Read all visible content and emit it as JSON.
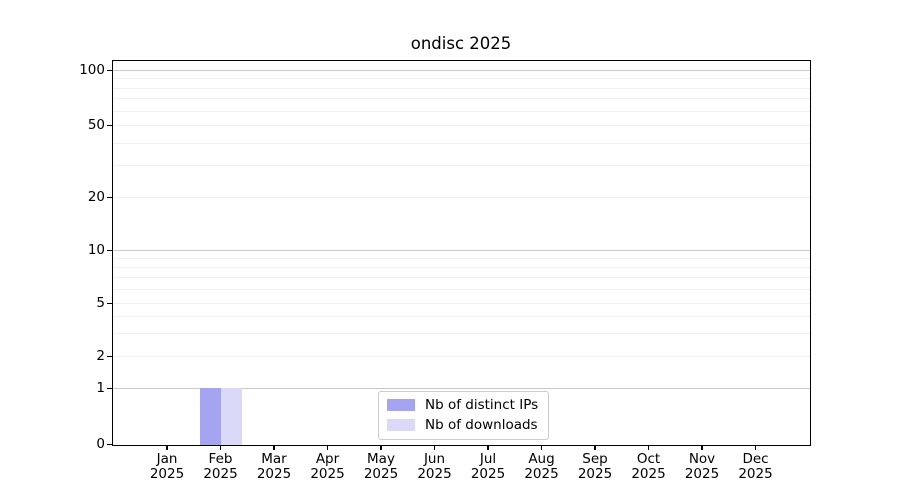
{
  "chart_data": {
    "type": "bar",
    "title": "ondisc 2025",
    "x": {
      "categories": [
        "Jan",
        "Feb",
        "Mar",
        "Apr",
        "May",
        "Jun",
        "Jul",
        "Aug",
        "Sep",
        "Oct",
        "Nov",
        "Dec"
      ],
      "year": "2025"
    },
    "series": [
      {
        "name": "Nb of distinct IPs",
        "color": "#a4a4f0",
        "values": [
          0,
          1,
          0,
          0,
          0,
          0,
          0,
          0,
          0,
          0,
          0,
          0
        ]
      },
      {
        "name": "Nb of downloads",
        "color": "#dadaf8",
        "values": [
          0,
          1,
          0,
          0,
          0,
          0,
          0,
          0,
          0,
          0,
          0,
          0
        ]
      }
    ],
    "y_axis": {
      "scale": "log-like (linear 0-1, log above)",
      "tick_values": [
        0,
        1,
        2,
        5,
        10,
        20,
        50,
        100
      ],
      "major_grid_values": [
        1,
        10,
        100
      ],
      "minor_grid_values": [
        2,
        3,
        4,
        5,
        6,
        7,
        8,
        9,
        20,
        30,
        40,
        50,
        60,
        70,
        80,
        90
      ],
      "range": [
        0,
        110
      ]
    },
    "grid": "horizontal",
    "legend": {
      "position": "lower center",
      "entries": [
        "Nb of distinct IPs",
        "Nb of downloads"
      ]
    }
  }
}
